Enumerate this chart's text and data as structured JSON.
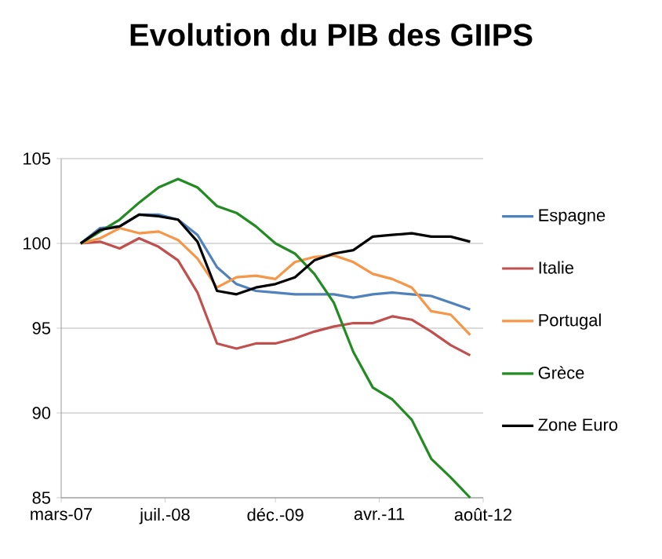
{
  "chart_data": {
    "type": "line",
    "title": "Evolution du PIB des GIIPS",
    "x": [
      "2007-06",
      "2007-09",
      "2007-12",
      "2008-03",
      "2008-06",
      "2008-09",
      "2008-12",
      "2009-03",
      "2009-06",
      "2009-09",
      "2009-12",
      "2010-03",
      "2010-06",
      "2010-09",
      "2010-12",
      "2011-03",
      "2011-06",
      "2011-09",
      "2011-12",
      "2012-03",
      "2012-06"
    ],
    "series": [
      {
        "name": "Espagne",
        "color": "#4f81bd",
        "values": [
          100,
          100.9,
          101.0,
          101.7,
          101.7,
          101.4,
          100.5,
          98.6,
          97.6,
          97.2,
          97.1,
          97.0,
          97.0,
          97.0,
          96.8,
          97.0,
          97.1,
          97.0,
          96.9,
          96.5,
          96.1
        ]
      },
      {
        "name": "Italie",
        "color": "#c0504d",
        "values": [
          100,
          100.1,
          99.7,
          100.3,
          99.8,
          99.0,
          97.1,
          94.1,
          93.8,
          94.1,
          94.1,
          94.4,
          94.8,
          95.1,
          95.3,
          95.3,
          95.7,
          95.5,
          94.8,
          94.0,
          93.4
        ]
      },
      {
        "name": "Portugal",
        "color": "#f79646",
        "values": [
          100,
          100.3,
          100.9,
          100.6,
          100.7,
          100.2,
          99.1,
          97.4,
          98.0,
          98.1,
          97.9,
          98.9,
          99.2,
          99.3,
          98.9,
          98.2,
          97.9,
          97.4,
          96.0,
          95.8,
          94.6
        ]
      },
      {
        "name": "Grèce",
        "color": "#228b22",
        "values": [
          100,
          100.7,
          101.4,
          102.4,
          103.3,
          103.8,
          103.3,
          102.2,
          101.8,
          101.0,
          100.0,
          99.4,
          98.2,
          96.5,
          93.6,
          91.5,
          90.8,
          89.6,
          87.3,
          86.2,
          85.0
        ]
      },
      {
        "name": "Zone Euro",
        "color": "#000000",
        "values": [
          100,
          100.8,
          101.0,
          101.7,
          101.6,
          101.4,
          100.1,
          97.2,
          97.0,
          97.4,
          97.6,
          98.0,
          99.0,
          99.4,
          99.6,
          100.4,
          100.5,
          100.6,
          100.4,
          100.4,
          100.1
        ]
      }
    ],
    "xlim": [
      "2007-03",
      "2012-08"
    ],
    "xticks": [
      {
        "value": "2007-03",
        "label": "mars-07"
      },
      {
        "value": "2008-07",
        "label": "juil.-08"
      },
      {
        "value": "2009-12",
        "label": "déc.-09"
      },
      {
        "value": "2011-04",
        "label": "avr.-11"
      },
      {
        "value": "2012-08",
        "label": "août-12"
      }
    ],
    "ylim": [
      85,
      105
    ],
    "yticks": [
      85,
      90,
      95,
      100,
      105
    ],
    "grid": "y",
    "legend": "right",
    "marker": "none",
    "line_style": "solid"
  }
}
